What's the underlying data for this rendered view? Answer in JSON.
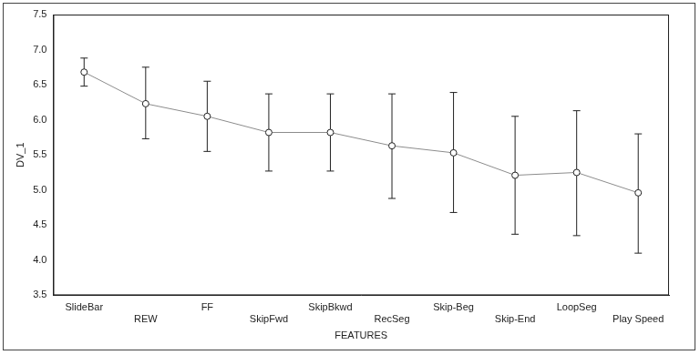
{
  "chart_data": {
    "type": "line",
    "x_label": "FEATURES",
    "y_label": "DV_1",
    "categories": [
      "SlideBar",
      "REW",
      "FF",
      "SkipFwd",
      "SkipBkwd",
      "RecSeg",
      "Skip-Beg",
      "Skip-End",
      "LoopSeg",
      "Play Speed"
    ],
    "values": [
      6.68,
      6.23,
      6.05,
      5.82,
      5.82,
      5.63,
      5.53,
      5.21,
      5.25,
      4.96
    ],
    "error_low": [
      6.48,
      5.73,
      5.55,
      5.27,
      5.27,
      4.88,
      4.68,
      4.37,
      4.35,
      4.1
    ],
    "error_high": [
      6.88,
      6.75,
      6.55,
      6.37,
      6.37,
      6.37,
      6.39,
      6.05,
      6.13,
      5.8
    ],
    "color": "#8c8c8c",
    "marker": "circle",
    "ylim": [
      3.5,
      7.5
    ],
    "yticks": [
      {
        "value": 3.5,
        "label": "3.5"
      },
      {
        "value": 4,
        "label": "4.0"
      },
      {
        "value": 4.5,
        "label": "4.5"
      },
      {
        "value": 5,
        "label": "5.0"
      },
      {
        "value": 5.5,
        "label": "5.5"
      },
      {
        "value": 6,
        "label": "6.0"
      },
      {
        "value": 6.5,
        "label": "6.5"
      },
      {
        "value": 7,
        "label": "7.0"
      },
      {
        "value": 7.5,
        "label": "7.5"
      }
    ],
    "grid": false
  }
}
